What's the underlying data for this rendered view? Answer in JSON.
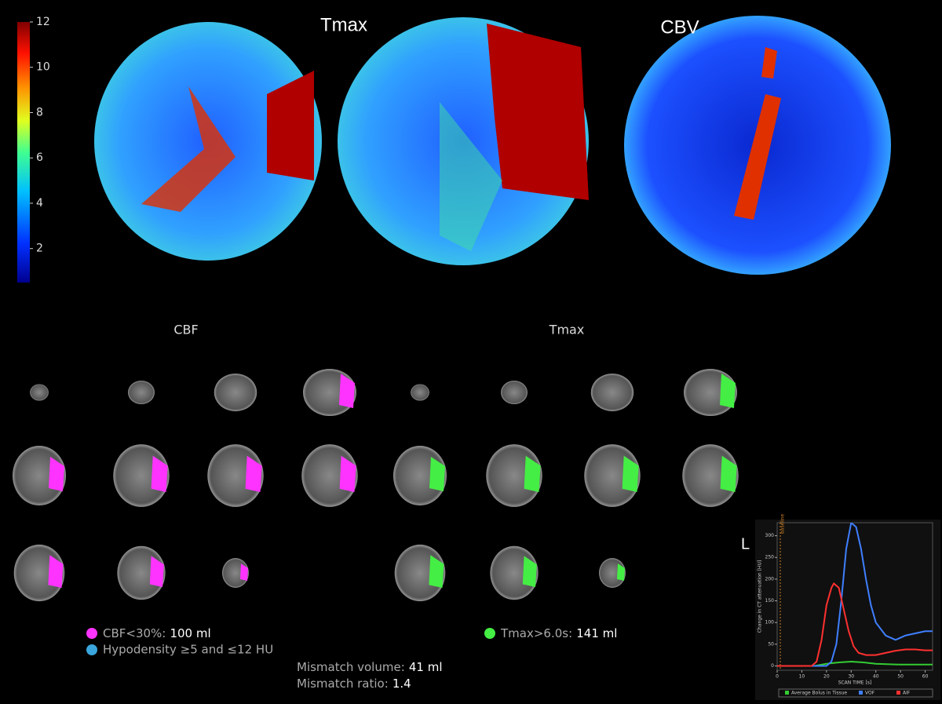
{
  "header": {
    "map_titles": [
      "Tmax",
      "CBV"
    ]
  },
  "colorbar": {
    "lim": [
      0.5,
      12
    ],
    "ticks": [
      2,
      4,
      6,
      8,
      10,
      12
    ]
  },
  "panels": {
    "cbf_title": "CBF",
    "tmax_title": "Tmax"
  },
  "legend": {
    "cbf_label": "CBF<30%:",
    "cbf_value": "100 ml",
    "hypodensity": "Hypodensity ≥5 and ≤12 HU",
    "tmax_label": "Tmax>6.0s:",
    "tmax_value": "141 ml",
    "mismatch_volume_label": "Mismatch volume:",
    "mismatch_volume_value": "41 ml",
    "mismatch_ratio_label": "Mismatch ratio:",
    "mismatch_ratio_value": "1.4"
  },
  "side_label": "L",
  "chart_data": {
    "type": "line",
    "xlabel": "SCAN TIME [s]",
    "ylabel": "Change in CT attenuation [HU]",
    "annotation": "baseline",
    "xlim": [
      0,
      63
    ],
    "ylim": [
      -10,
      330
    ],
    "xticks": [
      0,
      10,
      20,
      30,
      40,
      50,
      60
    ],
    "yticks": [
      0,
      50,
      100,
      150,
      200,
      250,
      300
    ],
    "legend": "bottom",
    "series": [
      {
        "name": "Average Bolus in Tissue",
        "color": "#33cc33",
        "x": [
          0,
          15,
          20,
          25,
          30,
          35,
          40,
          50,
          63
        ],
        "values": [
          0,
          0,
          5,
          8,
          10,
          8,
          5,
          3,
          3
        ]
      },
      {
        "name": "VOF",
        "color": "#3f7fff",
        "x": [
          0,
          20,
          22,
          24,
          26,
          28,
          30,
          32,
          34,
          36,
          38,
          40,
          44,
          48,
          52,
          56,
          60,
          63
        ],
        "values": [
          0,
          0,
          10,
          50,
          150,
          270,
          330,
          320,
          270,
          200,
          140,
          100,
          70,
          60,
          70,
          75,
          80,
          80
        ]
      },
      {
        "name": "AIF",
        "color": "#ff3030",
        "x": [
          0,
          14,
          16,
          18,
          20,
          22,
          23,
          25,
          27,
          29,
          31,
          33,
          36,
          40,
          44,
          48,
          52,
          56,
          60,
          63
        ],
        "values": [
          0,
          0,
          10,
          60,
          140,
          180,
          190,
          180,
          130,
          80,
          45,
          30,
          25,
          25,
          30,
          35,
          38,
          38,
          36,
          36
        ]
      }
    ]
  }
}
